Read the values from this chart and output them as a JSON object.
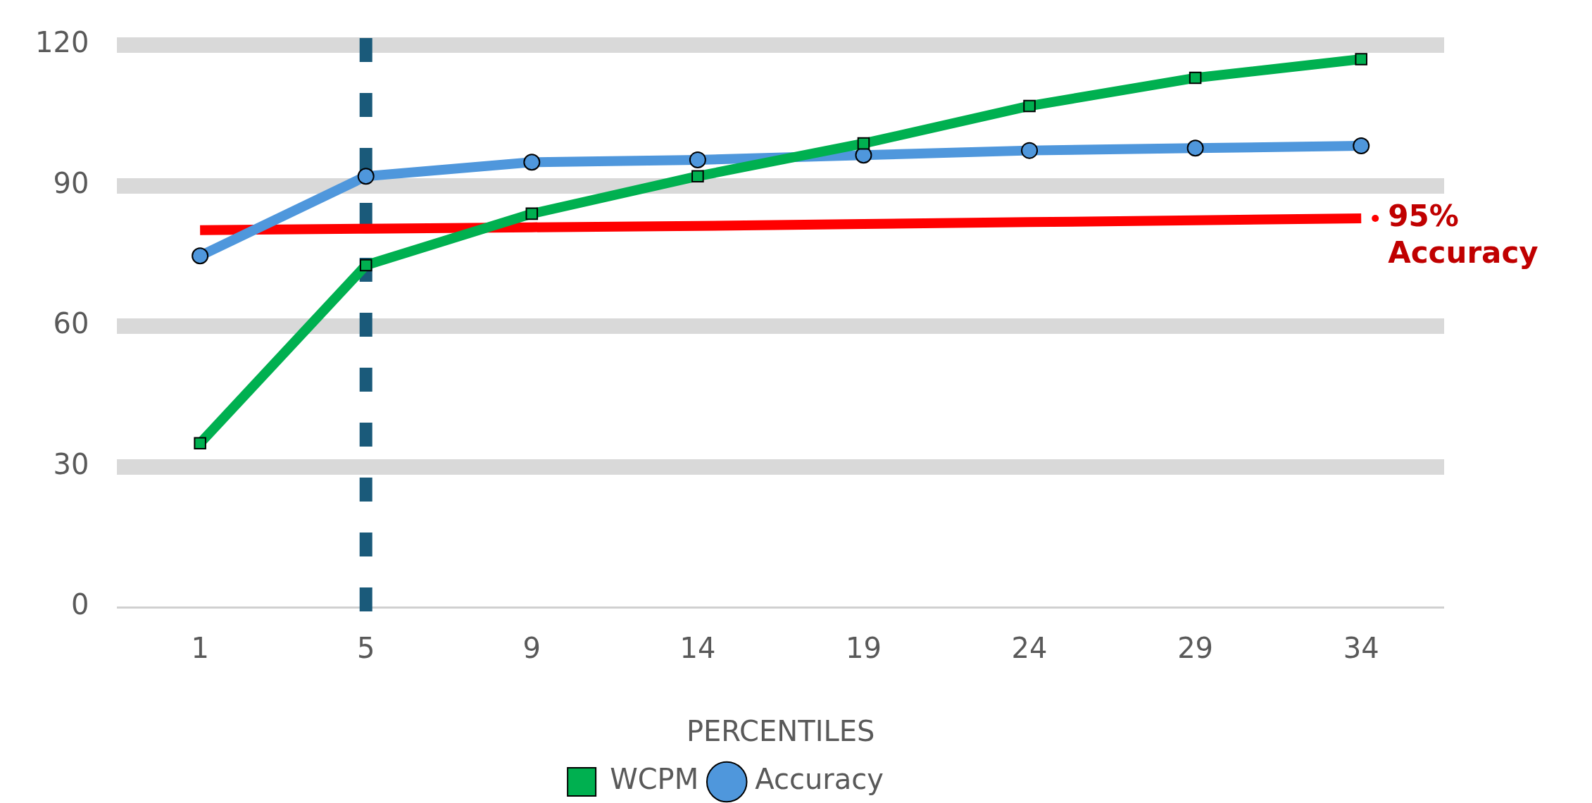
{
  "chart_data": {
    "type": "line",
    "xlabel": "PERCENTILES",
    "categories": [
      "1",
      "5",
      "9",
      "14",
      "19",
      "24",
      "29",
      "34"
    ],
    "series": [
      {
        "name": "WCPM",
        "color": "#00b050",
        "marker": "square",
        "values": [
          35,
          73,
          84,
          92,
          99,
          107,
          113,
          117
        ]
      },
      {
        "name": "Accuracy",
        "color": "#4f97dc",
        "marker": "circle",
        "values": [
          75,
          92,
          95,
          95.5,
          96.5,
          97.5,
          98,
          98.5
        ]
      },
      {
        "name": "95% Accuracy",
        "color": "#ff0000",
        "marker": "none",
        "values": [
          80.5,
          80.8,
          81.1,
          81.4,
          81.8,
          82.2,
          82.6,
          83
        ]
      }
    ],
    "ref_lines": [
      {
        "axis": "x",
        "value": "5",
        "color": "#1a5a7a",
        "line_style": "dashed"
      }
    ],
    "ylim": [
      0,
      120
    ],
    "yticks": [
      0,
      30,
      60,
      90,
      120
    ],
    "grid": "y",
    "legend": "bottom"
  }
}
